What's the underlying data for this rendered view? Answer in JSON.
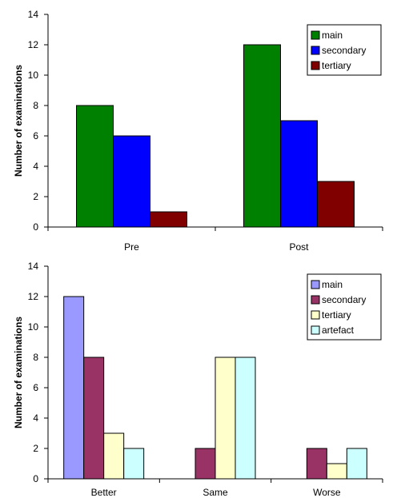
{
  "chart_data": [
    {
      "type": "bar",
      "categories": [
        "Pre",
        "Post"
      ],
      "series": [
        {
          "name": "main",
          "values": [
            8,
            12
          ],
          "color": "#008000"
        },
        {
          "name": "secondary",
          "values": [
            6,
            7
          ],
          "color": "#0000ff"
        },
        {
          "name": "tertiary",
          "values": [
            1,
            3
          ],
          "color": "#800000"
        }
      ],
      "ylabel": "Number of examinations",
      "ylim": [
        0,
        14
      ],
      "yticks": [
        0,
        2,
        4,
        6,
        8,
        10,
        12,
        14
      ],
      "legend": "top-right",
      "grid": false
    },
    {
      "type": "bar",
      "categories": [
        "Better",
        "Same",
        "Worse"
      ],
      "series": [
        {
          "name": "main",
          "values": [
            12,
            0,
            0
          ],
          "color": "#9999ff"
        },
        {
          "name": "secondary",
          "values": [
            8,
            2,
            2
          ],
          "color": "#993366"
        },
        {
          "name": "tertiary",
          "values": [
            3,
            8,
            1
          ],
          "color": "#ffffcc"
        },
        {
          "name": "artefact",
          "values": [
            2,
            8,
            2
          ],
          "color": "#ccffff"
        }
      ],
      "ylabel": "Number of examinations",
      "ylim": [
        0,
        14
      ],
      "yticks": [
        0,
        2,
        4,
        6,
        8,
        10,
        12,
        14
      ],
      "legend": "top-right",
      "grid": false
    }
  ]
}
